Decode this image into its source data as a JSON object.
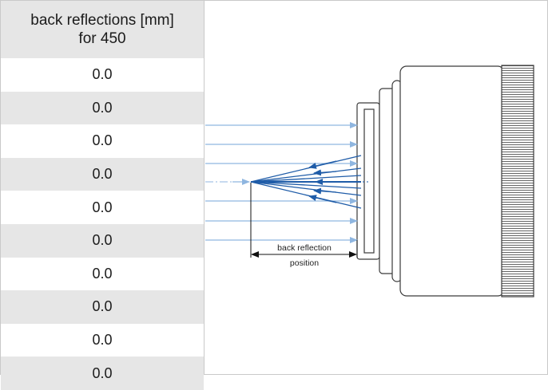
{
  "table": {
    "header_line1": "back reflections [mm]",
    "header_line2": "for 450",
    "rows": [
      "0.0",
      "0.0",
      "0.0",
      "0.0",
      "0.0",
      "0.0",
      "0.0",
      "0.0",
      "0.0",
      "0.0"
    ]
  },
  "diagram": {
    "label_line1": "back reflection",
    "label_line2": "position",
    "colors": {
      "beam_light": "#8fb6e0",
      "beam_dark": "#1f5ca8",
      "lens": "#3a3a3a"
    }
  }
}
